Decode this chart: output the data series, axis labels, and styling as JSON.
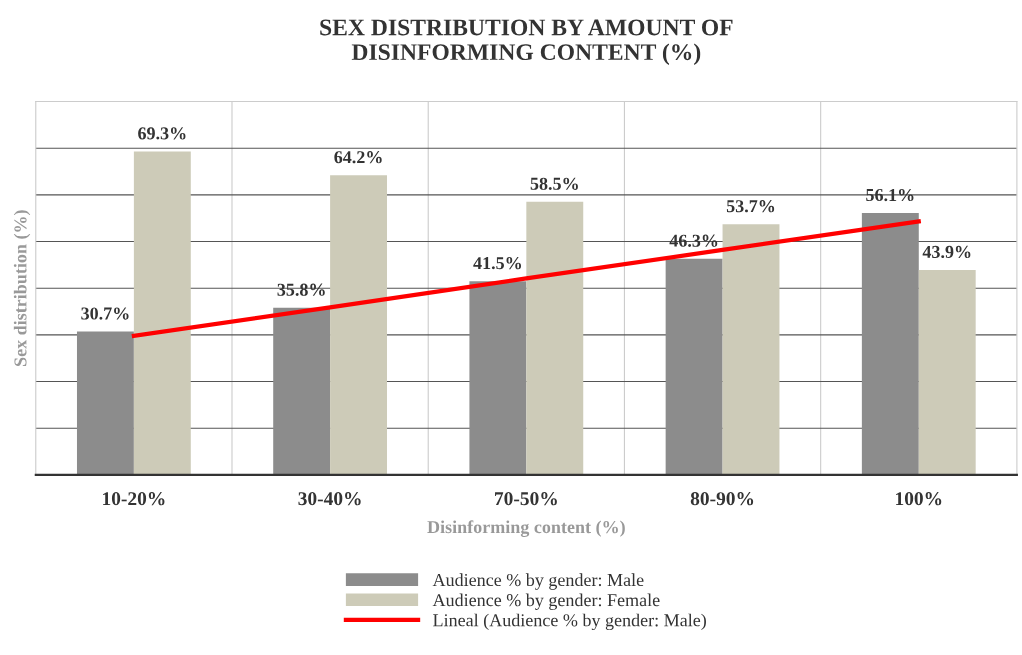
{
  "chart_data": {
    "type": "bar",
    "title": "SEX DISTRIBUTION BY AMOUNT OF\nDISINFORMING CONTENT (%)",
    "xlabel": "Disinforming content (%)",
    "ylabel": "Sex distribution (%)",
    "categories": [
      "10-20%",
      "30-40%",
      "70-50%",
      "80-90%",
      "100%"
    ],
    "series": [
      {
        "name": "Audience % by gender: Male",
        "color": "#8c8c8c",
        "values": [
          30.7,
          35.8,
          41.5,
          46.3,
          56.1
        ],
        "value_labels": [
          "30.7%",
          "35.8%",
          "41.5%",
          "46.3%",
          "56.1%"
        ]
      },
      {
        "name": "Audience % by gender: Female",
        "color": "#cdcbb8",
        "values": [
          69.3,
          64.2,
          58.5,
          53.7,
          43.9
        ],
        "value_labels": [
          "69.3%",
          "64.2%",
          "58.5%",
          "53.7%",
          "43.9%"
        ]
      },
      {
        "name": "Lineal (Audience % by gender: Male)",
        "type": "line",
        "color": "#ff0000",
        "values": [
          29.8,
          35.9,
          42.1,
          48.2,
          54.3
        ]
      }
    ],
    "ylim": [
      0,
      80
    ],
    "yticks": [
      {
        "value": 0,
        "label": null
      },
      {
        "value": 10,
        "label": null
      },
      {
        "value": 20,
        "label": null
      },
      {
        "value": 30,
        "label": null
      },
      {
        "value": 40,
        "label": null
      },
      {
        "value": 50,
        "label": null
      },
      {
        "value": 60,
        "label": null
      },
      {
        "value": 70,
        "label": null
      },
      {
        "value": 80,
        "label": null
      }
    ],
    "tick_labels": "x",
    "grid": true,
    "legend": "bottom"
  }
}
